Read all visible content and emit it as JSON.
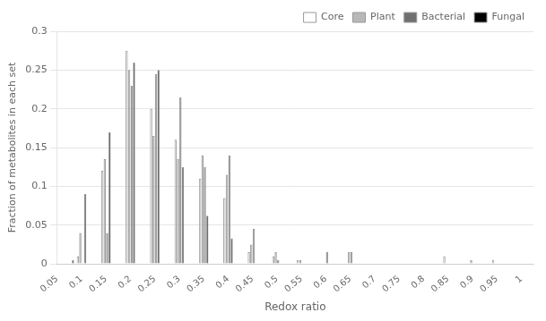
{
  "chart_data": {
    "type": "bar",
    "xlabel": "Redox ratio",
    "ylabel": "Fraction of metabolites in each set",
    "x": [
      0.075,
      0.1,
      0.15,
      0.2,
      0.25,
      0.3,
      0.35,
      0.4,
      0.45,
      0.5,
      0.55,
      0.6,
      0.65,
      0.7,
      0.75,
      0.8,
      0.85,
      0.9,
      0.95,
      1.0
    ],
    "series": [
      {
        "name": "Core",
        "color": "#ffffff",
        "values": [
          0.0,
          0.01,
          0.12,
          0.275,
          0.2,
          0.16,
          0.11,
          0.085,
          0.015,
          0.01,
          0.005,
          0.0,
          0.0,
          0.0,
          0.0,
          0.0,
          0.01,
          0.0,
          0.005,
          0.0
        ]
      },
      {
        "name": "Plant",
        "color": "#b8b8b8",
        "values": [
          0.0,
          0.04,
          0.135,
          0.25,
          0.165,
          0.135,
          0.14,
          0.115,
          0.025,
          0.015,
          0.005,
          0.0,
          0.015,
          0.0,
          0.0,
          0.0,
          0.0,
          0.005,
          0.0,
          0.0
        ]
      },
      {
        "name": "Bacterial",
        "color": "#707070",
        "values": [
          0.0,
          0.0,
          0.04,
          0.23,
          0.245,
          0.215,
          0.125,
          0.14,
          0.045,
          0.005,
          0.0,
          0.015,
          0.015,
          0.0,
          0.0,
          0.0,
          0.0,
          0.0,
          0.0,
          0.0
        ]
      },
      {
        "name": "Fungal",
        "color": "#000000",
        "values": [
          0.005,
          0.09,
          0.17,
          0.26,
          0.25,
          0.125,
          0.062,
          0.033,
          0.0,
          0.0,
          0.0,
          0.0,
          0.0,
          0.0,
          0.0,
          0.0,
          0.0,
          0.0,
          0.0,
          0.0
        ]
      }
    ],
    "xlim": [
      0.05,
      1.025
    ],
    "ylim": [
      0.0,
      0.3
    ],
    "xticks": [
      0.05,
      0.1,
      0.15,
      0.2,
      0.25,
      0.3,
      0.35,
      0.4,
      0.45,
      0.5,
      0.55,
      0.6,
      0.65,
      0.7,
      0.75,
      0.8,
      0.85,
      0.9,
      0.95,
      1.0
    ],
    "yticks": [
      0.0,
      0.05,
      0.1,
      0.15,
      0.2,
      0.25,
      0.3
    ],
    "grid": "y",
    "legend": "upper right"
  }
}
